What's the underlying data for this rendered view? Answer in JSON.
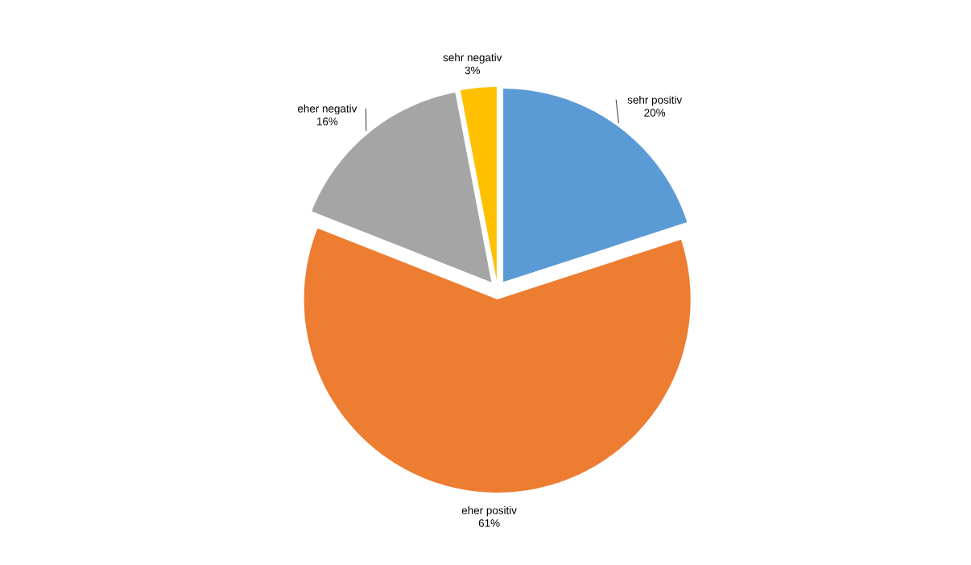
{
  "chart_data": {
    "type": "pie",
    "categories": [
      "sehr positiv",
      "eher positiv",
      "eher negativ",
      "sehr negativ"
    ],
    "values": [
      20,
      61,
      16,
      3
    ],
    "colors": [
      "#5b9bd5",
      "#ed7d31",
      "#a5a5a5",
      "#ffc000"
    ],
    "data_labels": true,
    "value_labels": [
      "20%",
      "61%",
      "16%",
      "3%"
    ]
  }
}
